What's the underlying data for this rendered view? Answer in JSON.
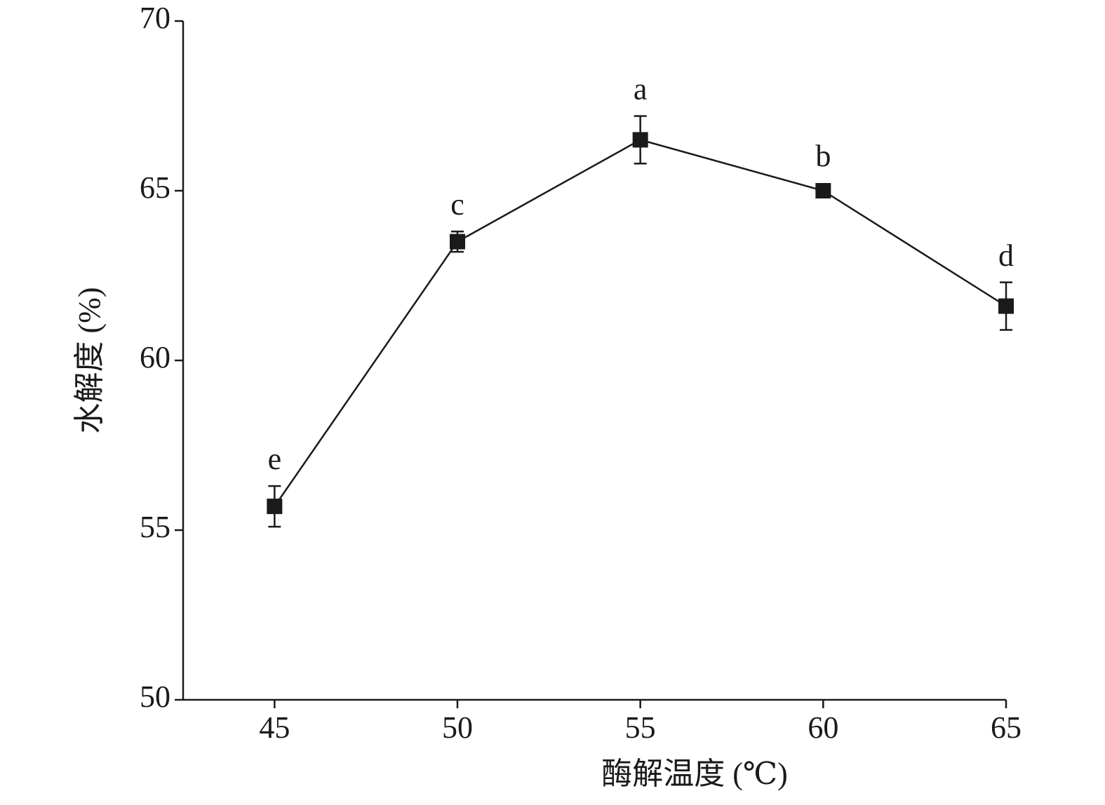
{
  "chart_data": {
    "type": "line",
    "x_label": "酶解温度 (℃)",
    "y_label": "水解度 (%)",
    "x": [
      45,
      50,
      55,
      60,
      65
    ],
    "values": [
      55.7,
      63.5,
      66.5,
      65.0,
      61.6
    ],
    "errors": [
      0.6,
      0.3,
      0.7,
      0.1,
      0.7
    ],
    "point_labels": [
      "e",
      "c",
      "a",
      "b",
      "d"
    ],
    "color": "#1a1a1a",
    "xlim": [
      42.5,
      65
    ],
    "xticks": [
      45,
      50,
      55,
      60,
      65
    ],
    "ylim": [
      50,
      70
    ],
    "yticks": [
      50,
      55,
      60,
      65,
      70
    ],
    "grid": false
  }
}
